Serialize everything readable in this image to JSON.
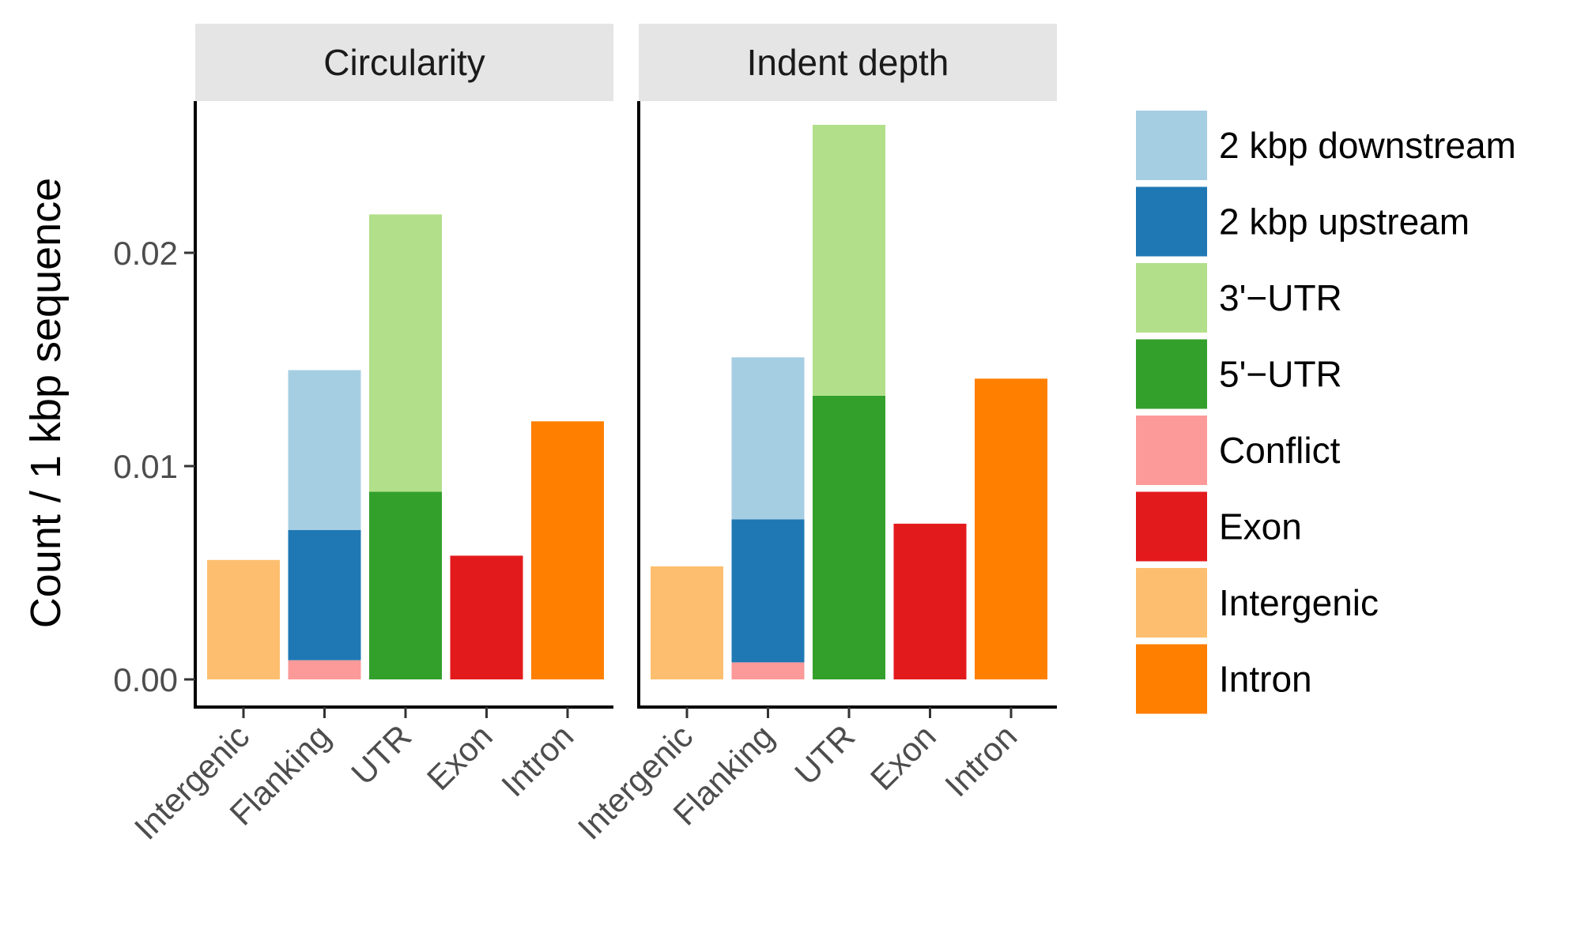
{
  "chart_data": {
    "type": "bar",
    "stacked": true,
    "ylabel": "Count / 1 kbp sequence",
    "xlabel": "",
    "ylim": [
      0,
      0.0258
    ],
    "yticks": [
      {
        "value": 0.0,
        "label": "0.00"
      },
      {
        "value": 0.01,
        "label": "0.01"
      },
      {
        "value": 0.02,
        "label": "0.02"
      }
    ],
    "categories": [
      "Intergenic",
      "Flanking",
      "UTR",
      "Exon",
      "Intron"
    ],
    "legend": {
      "position": "right",
      "entries": [
        {
          "name": "2 kbp downstream",
          "color": "#A6CEE3"
        },
        {
          "name": "2 kbp upstream",
          "color": "#1F78B4"
        },
        {
          "name": "3'−UTR",
          "color": "#B2DF8A"
        },
        {
          "name": "5'−UTR",
          "color": "#33A02C"
        },
        {
          "name": "Conflict",
          "color": "#FB9A99"
        },
        {
          "name": "Exon",
          "color": "#E31A1C"
        },
        {
          "name": "Intergenic",
          "color": "#FDBF6F"
        },
        {
          "name": "Intron",
          "color": "#FF7F00"
        }
      ]
    },
    "panels": [
      {
        "title": "Circularity",
        "bars": [
          {
            "category": "Intergenic",
            "segments": [
              {
                "series": "Intergenic",
                "value": 0.0056
              }
            ]
          },
          {
            "category": "Flanking",
            "segments": [
              {
                "series": "Conflict",
                "value": 0.0009
              },
              {
                "series": "2 kbp upstream",
                "value": 0.0061
              },
              {
                "series": "2 kbp downstream",
                "value": 0.0075
              }
            ]
          },
          {
            "category": "UTR",
            "segments": [
              {
                "series": "5'−UTR",
                "value": 0.0088
              },
              {
                "series": "3'−UTR",
                "value": 0.013
              }
            ]
          },
          {
            "category": "Exon",
            "segments": [
              {
                "series": "Exon",
                "value": 0.0058
              }
            ]
          },
          {
            "category": "Intron",
            "segments": [
              {
                "series": "Intron",
                "value": 0.0121
              }
            ]
          }
        ]
      },
      {
        "title": "Indent depth",
        "bars": [
          {
            "category": "Intergenic",
            "segments": [
              {
                "series": "Intergenic",
                "value": 0.0053
              }
            ]
          },
          {
            "category": "Flanking",
            "segments": [
              {
                "series": "Conflict",
                "value": 0.0008
              },
              {
                "series": "2 kbp upstream",
                "value": 0.0067
              },
              {
                "series": "2 kbp downstream",
                "value": 0.0076
              }
            ]
          },
          {
            "category": "UTR",
            "segments": [
              {
                "series": "5'−UTR",
                "value": 0.0133
              },
              {
                "series": "3'−UTR",
                "value": 0.0127
              }
            ]
          },
          {
            "category": "Exon",
            "segments": [
              {
                "series": "Exon",
                "value": 0.0073
              }
            ]
          },
          {
            "category": "Intron",
            "segments": [
              {
                "series": "Intron",
                "value": 0.0141
              }
            ]
          }
        ]
      }
    ]
  }
}
